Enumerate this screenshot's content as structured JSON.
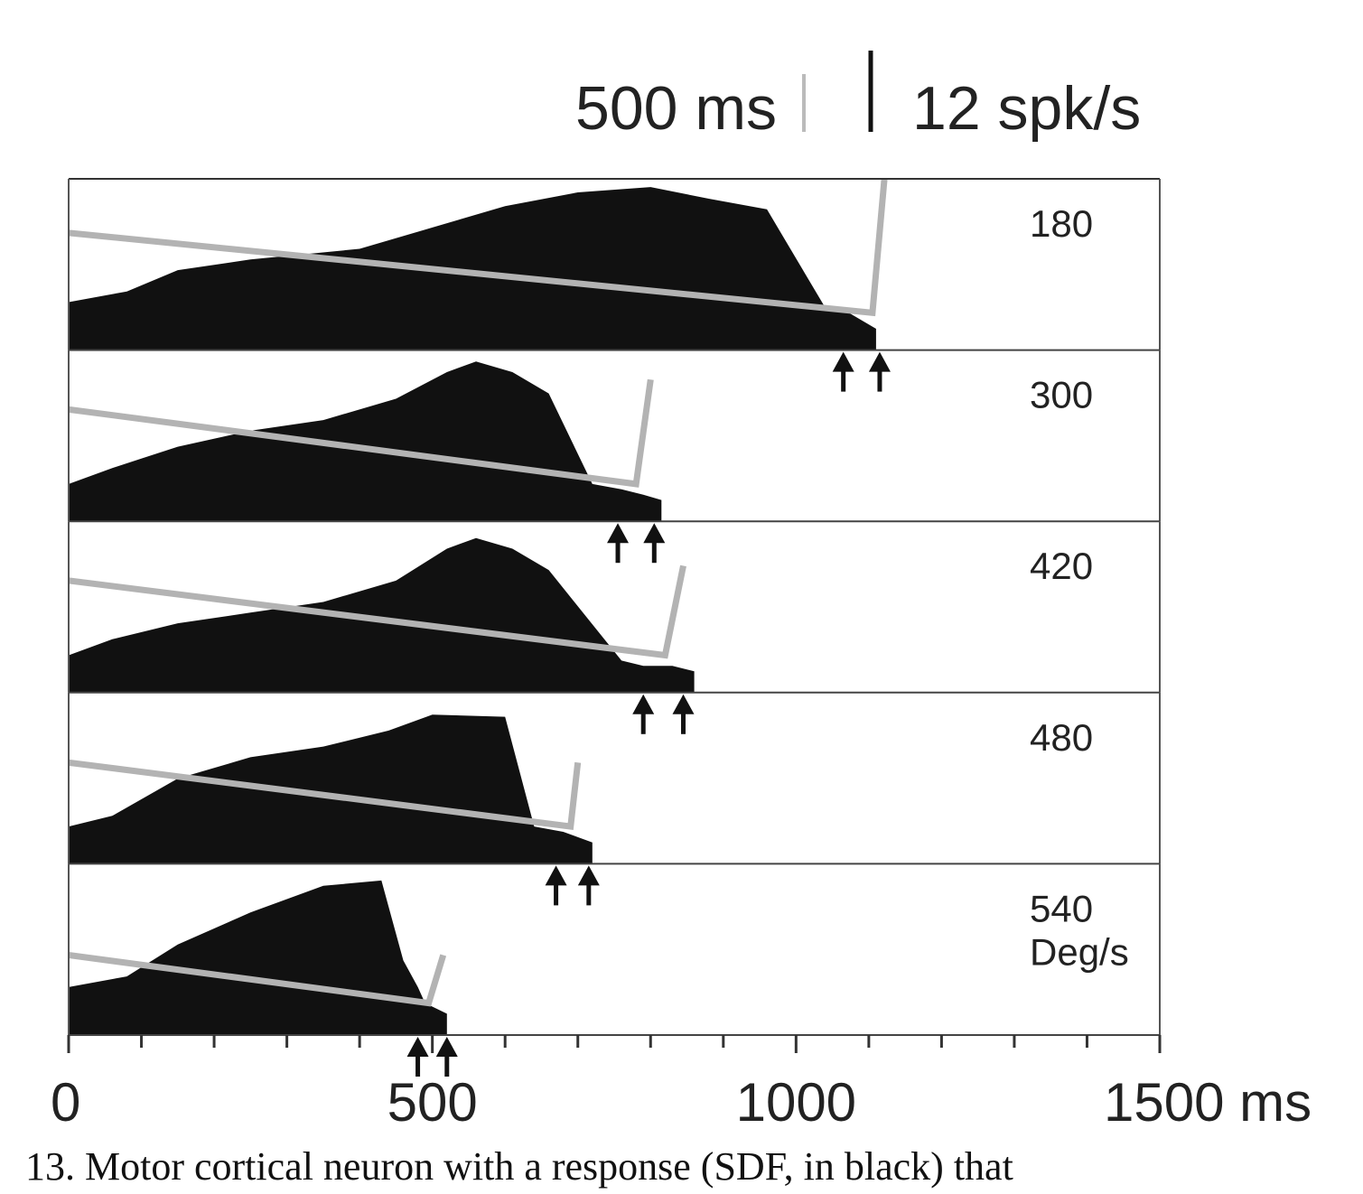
{
  "chart_data": {
    "type": "area",
    "title": "",
    "xlabel": "",
    "ylabel": "",
    "x_unit": "ms",
    "xlim": [
      0,
      1500
    ],
    "x_ticks": [
      "0",
      "500",
      "1000",
      "1500 ms"
    ],
    "x_tick_values": [
      0,
      500,
      1000,
      1500
    ],
    "minor_tick_step": 100,
    "scale_bars": {
      "time": "500 ms",
      "rate": "12 spk/s"
    },
    "panel_label_unit": "Deg/s",
    "panels": [
      {
        "label": "180",
        "sdf_time": [
          0,
          80,
          150,
          250,
          400,
          500,
          600,
          700,
          800,
          880,
          960,
          1040,
          1065,
          1110
        ],
        "sdf_rate": [
          4.5,
          5.5,
          7.5,
          8.5,
          9.5,
          11.5,
          13.5,
          14.8,
          15.3,
          14.2,
          13.2,
          4.0,
          3.8,
          2.0
        ],
        "line_time": [
          0,
          1105,
          1125
        ],
        "line_rate": [
          11.0,
          3.5,
          18.8
        ],
        "arrows_ms": [
          1065,
          1115
        ]
      },
      {
        "label": "300",
        "sdf_time": [
          0,
          60,
          150,
          250,
          350,
          450,
          520,
          560,
          610,
          660,
          720,
          760,
          790,
          815
        ],
        "sdf_rate": [
          3.5,
          5.0,
          7.0,
          8.5,
          9.5,
          11.5,
          14.0,
          15.0,
          14.0,
          12.0,
          3.5,
          3.0,
          2.5,
          2.0
        ],
        "line_time": [
          0,
          780,
          800
        ],
        "line_rate": [
          10.5,
          3.5,
          13.3
        ],
        "arrows_ms": [
          755,
          805
        ]
      },
      {
        "label": "420",
        "sdf_time": [
          0,
          60,
          150,
          250,
          350,
          450,
          520,
          560,
          610,
          660,
          760,
          790,
          830,
          860
        ],
        "sdf_rate": [
          3.5,
          5.0,
          6.5,
          7.5,
          8.5,
          10.5,
          13.5,
          14.5,
          13.5,
          11.5,
          3.0,
          2.5,
          2.5,
          2.0
        ],
        "line_time": [
          0,
          820,
          845
        ],
        "line_rate": [
          10.5,
          3.5,
          11.9
        ],
        "arrows_ms": [
          790,
          845
        ]
      },
      {
        "label": "480",
        "sdf_time": [
          0,
          60,
          150,
          250,
          350,
          440,
          500,
          600,
          640,
          680,
          700,
          720
        ],
        "sdf_rate": [
          3.5,
          4.5,
          8.0,
          10.0,
          11.0,
          12.5,
          14.0,
          13.8,
          3.5,
          3.0,
          2.5,
          2.0
        ],
        "line_time": [
          0,
          690,
          700
        ],
        "line_rate": [
          9.5,
          3.5,
          9.5
        ],
        "arrows_ms": [
          670,
          715
        ]
      },
      {
        "label": "540",
        "sdf_time": [
          0,
          80,
          150,
          250,
          350,
          430,
          460,
          480,
          490,
          520
        ],
        "sdf_rate": [
          4.5,
          5.5,
          8.5,
          11.5,
          14.0,
          14.5,
          7.0,
          4.5,
          3.0,
          2.0
        ],
        "line_time": [
          0,
          495,
          515
        ],
        "line_rate": [
          7.5,
          3.0,
          7.5
        ],
        "arrows_ms": [
          480,
          520
        ]
      }
    ]
  },
  "caption_text": "13. Motor cortical neuron with a response (SDF, in black) that"
}
